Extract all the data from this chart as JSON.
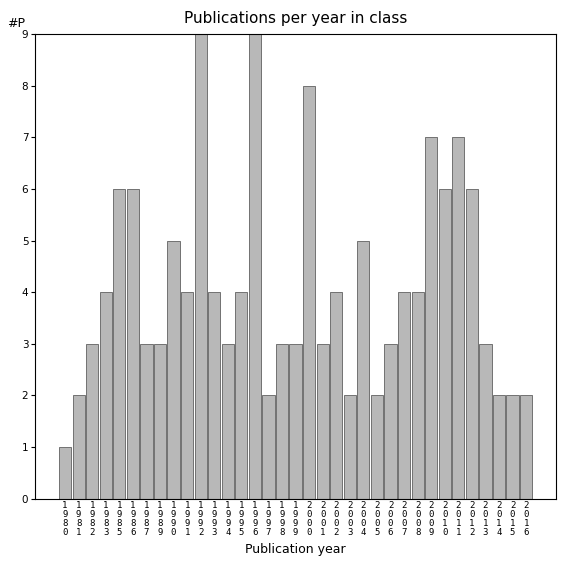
{
  "years": [
    "1980",
    "1981",
    "1982",
    "1983",
    "1985",
    "1986",
    "1987",
    "1989",
    "1990",
    "1991",
    "1992",
    "1993",
    "1994",
    "1995",
    "1996",
    "1997",
    "1998",
    "1999",
    "2000",
    "2001",
    "2002",
    "2003",
    "2004",
    "2005",
    "2006",
    "2007",
    "2008",
    "2009",
    "2010",
    "2011",
    "2012",
    "2013",
    "2014",
    "2015",
    "2016"
  ],
  "values": [
    1,
    2,
    3,
    4,
    6,
    6,
    3,
    3,
    5,
    4,
    9,
    4,
    3,
    4,
    9,
    2,
    3,
    3,
    8,
    3,
    4,
    2,
    5,
    2,
    3,
    4,
    4,
    7,
    6,
    7,
    6,
    3,
    2,
    2,
    2
  ],
  "bar_color": "#b8b8b8",
  "bar_edge_color": "#606060",
  "title": "Publications per year in class",
  "xlabel": "Publication year",
  "ylabel": "#P",
  "ylim": [
    0,
    9
  ],
  "yticks": [
    0,
    1,
    2,
    3,
    4,
    5,
    6,
    7,
    8,
    9
  ],
  "background_color": "#ffffff",
  "title_fontsize": 11,
  "label_fontsize": 9,
  "tick_fontsize": 6.5
}
